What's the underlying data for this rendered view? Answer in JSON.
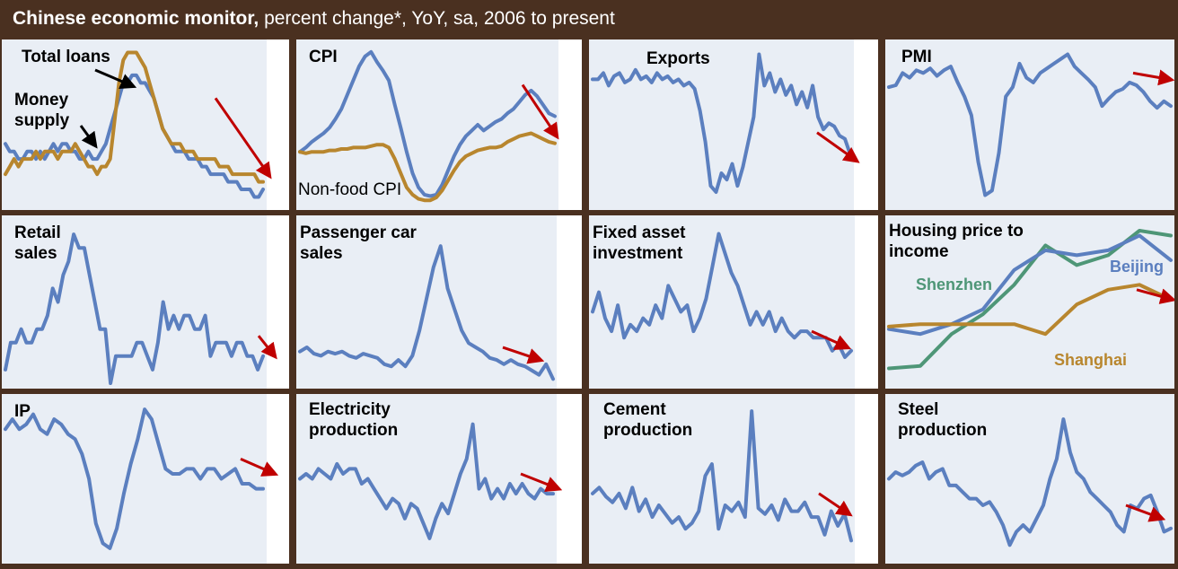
{
  "header": {
    "title_bold": "Chinese economic monitor,",
    "title_rest": " percent change*, YoY, sa, 2006  to present"
  },
  "colors": {
    "background": "#4a3020",
    "plot_area": "#e9eef5",
    "blue": "#5b7fbf",
    "gold": "#b8862e",
    "green": "#4e9677",
    "arrow": "#c00000"
  },
  "chart_data": [
    {
      "type": "line",
      "title": "",
      "annotations": [
        "Total loans",
        "Money\nsupply"
      ],
      "series": [
        {
          "name": "Money supply",
          "color": "blue",
          "values": [
            18,
            17,
            17,
            16,
            16,
            17,
            17,
            16,
            17,
            16,
            17,
            18,
            17,
            18,
            18,
            17,
            17,
            16,
            16,
            17,
            16,
            16,
            17,
            18,
            20,
            22,
            24,
            26,
            26,
            27,
            27,
            26,
            26,
            25,
            24,
            22,
            20,
            19,
            18,
            17,
            17,
            17,
            16,
            16,
            16,
            15,
            15,
            14,
            14,
            14,
            14,
            13,
            13,
            13,
            12,
            12,
            12,
            11,
            11,
            12
          ]
        },
        {
          "name": "Total loans",
          "color": "gold",
          "values": [
            14,
            15,
            16,
            15,
            16,
            16,
            16,
            17,
            16,
            17,
            17,
            17,
            16,
            17,
            17,
            17,
            18,
            17,
            16,
            15,
            15,
            14,
            15,
            15,
            16,
            21,
            26,
            29,
            30,
            30,
            30,
            29,
            28,
            26,
            24,
            22,
            20,
            19,
            18,
            18,
            18,
            17,
            17,
            17,
            16,
            16,
            16,
            16,
            16,
            15,
            15,
            15,
            14,
            14,
            14,
            14,
            14,
            14,
            13,
            13
          ]
        }
      ],
      "ylim": [
        10,
        31
      ]
    },
    {
      "type": "line",
      "title": "CPI",
      "annotations": [
        "Non-food CPI"
      ],
      "series": [
        {
          "name": "CPI",
          "color": "blue",
          "values": [
            1.5,
            1.8,
            2.2,
            2.5,
            2.8,
            3.2,
            3.8,
            4.5,
            5.5,
            6.5,
            7.5,
            8.2,
            8.5,
            7.8,
            7.2,
            6.5,
            4.8,
            3.2,
            1.5,
            0.0,
            -1.0,
            -1.5,
            -1.6,
            -1.5,
            -0.8,
            0.2,
            1.2,
            2.0,
            2.6,
            3.0,
            3.4,
            3.0,
            3.3,
            3.6,
            3.8,
            4.2,
            4.5,
            5.0,
            5.5,
            5.8,
            5.4,
            4.8,
            4.2,
            4.0
          ]
        },
        {
          "name": "Non-food CPI",
          "color": "gold",
          "values": [
            1.5,
            1.4,
            1.5,
            1.5,
            1.5,
            1.6,
            1.6,
            1.7,
            1.7,
            1.8,
            1.8,
            1.8,
            1.9,
            2.0,
            2.0,
            1.8,
            1.0,
            0.0,
            -1.0,
            -1.5,
            -1.8,
            -1.9,
            -1.9,
            -1.7,
            -1.2,
            -0.5,
            0.2,
            0.8,
            1.2,
            1.4,
            1.6,
            1.7,
            1.8,
            1.8,
            1.9,
            2.2,
            2.4,
            2.6,
            2.7,
            2.8,
            2.6,
            2.4,
            2.2,
            2.1
          ]
        }
      ],
      "ylim": [
        -2.2,
        9
      ]
    },
    {
      "type": "line",
      "title": "Exports",
      "series": [
        {
          "name": "Exports",
          "color": "blue",
          "values": [
            22,
            22,
            24,
            20,
            23,
            24,
            21,
            22,
            25,
            22,
            23,
            21,
            24,
            22,
            23,
            21,
            22,
            20,
            21,
            19,
            12,
            2,
            -12,
            -14,
            -8,
            -10,
            -5,
            -12,
            -6,
            2,
            10,
            30,
            20,
            24,
            18,
            22,
            17,
            20,
            14,
            18,
            13,
            20,
            10,
            6,
            8,
            7,
            4,
            3,
            -2
          ]
        },
        {
          "name": "",
          "color": "arrow",
          "values": [
            5,
            -4
          ]
        }
      ],
      "ylim": [
        -18,
        33
      ]
    },
    {
      "type": "line",
      "title": "PMI",
      "series": [
        {
          "name": "PMI",
          "color": "blue",
          "values": [
            53.0,
            53.2,
            54.5,
            54.0,
            54.8,
            54.5,
            55.0,
            54.2,
            54.8,
            55.2,
            53.5,
            52.0,
            50.0,
            45.0,
            41.5,
            42.0,
            46.0,
            52.0,
            53.0,
            55.5,
            54.0,
            53.5,
            54.5,
            55.0,
            55.5,
            56.0,
            56.5,
            55.2,
            54.5,
            53.8,
            53.0,
            51.0,
            51.8,
            52.5,
            52.8,
            53.5,
            53.2,
            52.5,
            51.5,
            50.8,
            51.5,
            51.0
          ]
        },
        {
          "name": "",
          "color": "arrow",
          "values": [
            54.5,
            53.8
          ]
        }
      ],
      "ylim": [
        40.5,
        57.5
      ]
    },
    {
      "type": "line",
      "title": "Retail\nsales",
      "series": [
        {
          "name": "Retail sales",
          "color": "blue",
          "values": [
            13,
            15,
            15,
            16,
            15,
            15,
            16,
            16,
            17,
            19,
            18,
            20,
            21,
            23,
            22,
            22,
            20,
            18,
            16,
            16,
            12,
            14,
            14,
            14,
            14,
            15,
            15,
            14,
            13,
            15,
            18,
            16,
            17,
            16,
            17,
            17,
            16,
            16,
            17,
            14,
            15,
            15,
            15,
            14,
            15,
            15,
            14,
            14,
            13,
            14
          ]
        },
        {
          "name": "",
          "color": "arrow",
          "values": [
            15.5,
            14
          ]
        }
      ],
      "ylim": [
        12,
        24
      ]
    },
    {
      "type": "line",
      "title": "Passenger car\nsales",
      "series": [
        {
          "name": "Passenger car sales",
          "color": "blue",
          "values": [
            10,
            12,
            9,
            8,
            10,
            9,
            10,
            8,
            7,
            9,
            8,
            7,
            4,
            3,
            6,
            3,
            8,
            20,
            35,
            50,
            60,
            40,
            30,
            20,
            14,
            12,
            10,
            7,
            6,
            4,
            6,
            4,
            3,
            1,
            -1,
            4,
            -3
          ]
        },
        {
          "name": "",
          "color": "arrow",
          "values": [
            12,
            6
          ]
        }
      ],
      "ylim": [
        -5,
        72
      ]
    },
    {
      "type": "line",
      "title": "Fixed asset\ninvestment",
      "series": [
        {
          "name": "Fixed asset investment",
          "color": "blue",
          "values": [
            26,
            29,
            25,
            23,
            27,
            22,
            24,
            23,
            25,
            24,
            27,
            25,
            30,
            28,
            26,
            27,
            23,
            25,
            28,
            33,
            38,
            35,
            32,
            30,
            27,
            24,
            26,
            24,
            26,
            23,
            25,
            23,
            22,
            23,
            23,
            22,
            22,
            22,
            20,
            21,
            19,
            20
          ]
        },
        {
          "name": "",
          "color": "arrow",
          "values": [
            23,
            20.5
          ]
        }
      ],
      "ylim": [
        15,
        40
      ]
    },
    {
      "type": "line",
      "title": "Housing price to\nincome",
      "annotations": [
        "Shenzhen",
        "Beijing",
        "Shanghai"
      ],
      "series": [
        {
          "name": "Shenzhen",
          "color": "green",
          "values": [
            8,
            8.5,
            15,
            19,
            25,
            33,
            29,
            31,
            36,
            35
          ]
        },
        {
          "name": "Beijing",
          "color": "blue",
          "values": [
            16,
            15,
            17,
            20,
            28,
            32,
            31,
            32,
            35,
            30
          ]
        },
        {
          "name": "Shanghai",
          "color": "gold",
          "values": [
            16.5,
            17,
            17,
            17,
            17,
            15,
            21,
            24,
            25,
            22
          ]
        },
        {
          "name": "",
          "color": "arrow",
          "values": [
            24,
            22
          ]
        }
      ],
      "ylim": [
        5,
        38
      ]
    },
    {
      "type": "line",
      "title": "IP",
      "series": [
        {
          "name": "IP",
          "color": "blue",
          "values": [
            17.5,
            18.5,
            17.5,
            18.0,
            19.0,
            17.5,
            17.0,
            18.5,
            18.0,
            17.0,
            16.5,
            15.0,
            12.5,
            8.0,
            6.0,
            5.5,
            7.5,
            11.0,
            14.0,
            16.5,
            19.5,
            18.5,
            16.0,
            13.5,
            13.0,
            13.0,
            13.5,
            13.5,
            12.5,
            13.5,
            13.5,
            12.5,
            13.0,
            13.5,
            12.0,
            12.0,
            11.5,
            11.5
          ]
        },
        {
          "name": "",
          "color": "arrow",
          "values": [
            14.5,
            13
          ]
        }
      ],
      "ylim": [
        4.5,
        20.5
      ]
    },
    {
      "type": "line",
      "title": "Electricity\nproduction",
      "series": [
        {
          "name": "Electricity production",
          "color": "blue",
          "values": [
            14,
            15,
            14,
            16,
            15,
            14,
            17,
            15,
            16,
            16,
            13,
            14,
            12,
            10,
            8,
            10,
            9,
            6,
            9,
            8,
            5,
            2,
            6,
            9,
            7,
            11,
            15,
            18,
            25,
            12,
            14,
            10,
            12,
            10,
            13,
            11,
            13,
            11,
            10,
            12,
            11,
            11
          ]
        },
        {
          "name": "",
          "color": "arrow",
          "values": [
            15,
            12
          ]
        }
      ],
      "ylim": [
        -2,
        30
      ]
    },
    {
      "type": "line",
      "title": "Cement\nproduction",
      "series": [
        {
          "name": "Cement production",
          "color": "blue",
          "values": [
            20,
            22,
            19,
            17,
            20,
            15,
            22,
            14,
            18,
            12,
            16,
            13,
            10,
            12,
            8,
            10,
            14,
            26,
            30,
            8,
            16,
            14,
            17,
            12,
            48,
            15,
            13,
            16,
            11,
            18,
            14,
            14,
            17,
            12,
            12,
            6,
            14,
            9,
            13,
            4
          ]
        },
        {
          "name": "",
          "color": "arrow",
          "values": [
            20,
            13
          ]
        }
      ],
      "ylim": [
        -2,
        52
      ]
    },
    {
      "type": "line",
      "title": "Steel\nproduction",
      "series": [
        {
          "name": "Steel production",
          "color": "blue",
          "values": [
            20,
            22,
            21,
            22,
            24,
            25,
            20,
            22,
            23,
            18,
            18,
            16,
            14,
            14,
            12,
            13,
            10,
            6,
            0,
            4,
            6,
            4,
            8,
            12,
            20,
            26,
            38,
            28,
            22,
            20,
            16,
            14,
            12,
            10,
            6,
            4,
            12,
            11,
            14,
            15,
            10,
            4,
            5
          ]
        },
        {
          "name": "",
          "color": "arrow",
          "values": [
            12,
            8
          ]
        }
      ],
      "ylim": [
        -4,
        44
      ]
    }
  ]
}
